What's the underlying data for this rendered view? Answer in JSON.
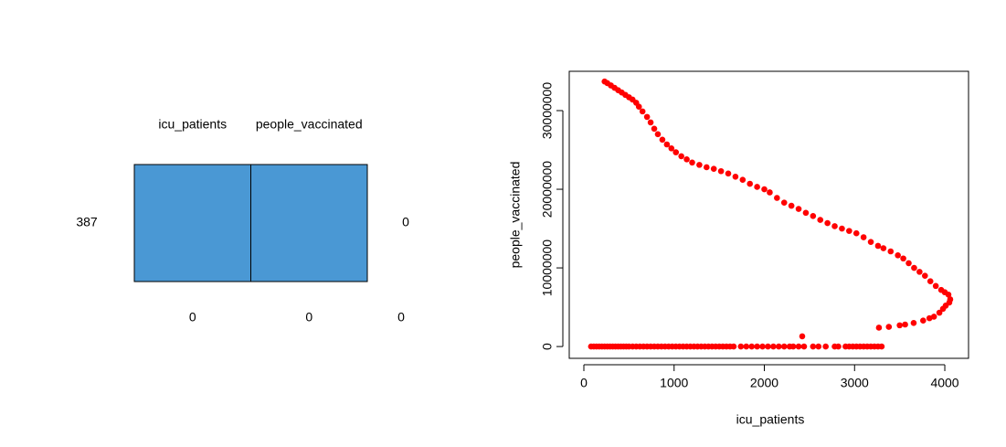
{
  "chart_data": [
    {
      "type": "pattern",
      "columns": [
        "icu_patients",
        "people_vaccinated"
      ],
      "rows": [
        {
          "count": 387,
          "missing": 0
        }
      ],
      "column_missing": [
        0,
        0
      ],
      "total_missing": 0,
      "color": "#4a98d4"
    },
    {
      "type": "scatter",
      "xlabel": "icu_patients",
      "ylabel": "people_vaccinated",
      "color": "#ff0000",
      "xlim": [
        -162,
        4263
      ],
      "ylim": [
        -1500000,
        35000000
      ],
      "xticks": [
        0,
        1000,
        2000,
        3000,
        4000
      ],
      "yticks": [
        0,
        10000000,
        20000000,
        30000000
      ],
      "x": [
        230,
        260,
        300,
        340,
        380,
        420,
        460,
        500,
        540,
        580,
        610,
        650,
        700,
        740,
        780,
        820,
        870,
        920,
        970,
        1020,
        1080,
        1140,
        1200,
        1280,
        1360,
        1440,
        1520,
        1600,
        1680,
        1760,
        1840,
        1920,
        2000,
        2060,
        2140,
        2220,
        2300,
        2380,
        2460,
        2540,
        2620,
        2700,
        2780,
        2860,
        2940,
        3020,
        3100,
        3180,
        3260,
        3320,
        3400,
        3480,
        3540,
        3600,
        3660,
        3720,
        3780,
        3840,
        3900,
        3960,
        4000,
        4040,
        4060,
        4050,
        4010,
        3980,
        3940,
        3880,
        3830,
        3760,
        3655,
        3560,
        3500,
        3380,
        3270,
        2420,
        80,
        110,
        140,
        170,
        200,
        230,
        260,
        290,
        320,
        350,
        380,
        410,
        440,
        470,
        500,
        540,
        580,
        620,
        660,
        700,
        740,
        780,
        820,
        860,
        900,
        940,
        980,
        1020,
        1060,
        1100,
        1140,
        1180,
        1220,
        1260,
        1300,
        1340,
        1380,
        1420,
        1460,
        1500,
        1540,
        1580,
        1620,
        1660,
        1740,
        1800,
        1860,
        1920,
        1980,
        2040,
        2100,
        2160,
        2220,
        2280,
        2320,
        2380,
        2440,
        2540,
        2600,
        2680,
        2780,
        2820,
        2900,
        2940,
        2980,
        3020,
        3060,
        3100,
        3140,
        3180,
        3220,
        3260,
        3300
      ],
      "values": [
        33700000,
        33500000,
        33200000,
        32900000,
        32600000,
        32300000,
        32000000,
        31700000,
        31400000,
        31000000,
        30500000,
        29900000,
        29200000,
        28500000,
        27700000,
        27000000,
        26300000,
        25700000,
        25200000,
        24700000,
        24200000,
        23800000,
        23400000,
        23100000,
        22800000,
        22600000,
        22300000,
        22000000,
        21600000,
        21200000,
        20700000,
        20300000,
        20000000,
        19600000,
        18900000,
        18300000,
        17900000,
        17500000,
        17000000,
        16600000,
        16100000,
        15700000,
        15300000,
        15000000,
        14700000,
        14400000,
        13900000,
        13300000,
        12800000,
        12500000,
        12100000,
        11600000,
        11200000,
        10600000,
        10000000,
        9500000,
        9000000,
        8300000,
        7700000,
        7200000,
        6900000,
        6600000,
        6000000,
        5600000,
        5200000,
        4800000,
        4300000,
        3800000,
        3600000,
        3300000,
        3000000,
        2800000,
        2700000,
        2500000,
        2400000,
        1300000,
        0,
        0,
        0,
        0,
        0,
        0,
        0,
        0,
        0,
        0,
        0,
        0,
        0,
        0,
        0,
        0,
        0,
        0,
        0,
        0,
        0,
        0,
        0,
        0,
        0,
        0,
        0,
        0,
        0,
        0,
        0,
        0,
        0,
        0,
        0,
        0,
        0,
        0,
        0,
        0,
        0,
        0,
        0,
        0,
        0,
        0,
        0,
        0,
        0,
        0,
        0,
        0,
        0,
        0,
        0,
        0,
        0,
        0,
        0,
        0,
        0,
        0,
        0,
        0,
        0,
        0,
        0,
        0,
        0,
        0,
        0,
        0,
        0
      ]
    }
  ]
}
